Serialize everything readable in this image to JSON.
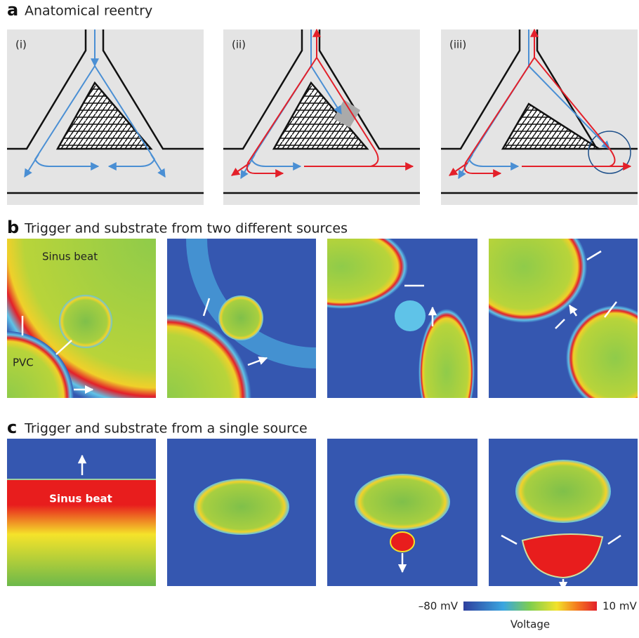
{
  "panels": [
    {
      "letter": "a",
      "title": "Anatomical reentry",
      "labels": [
        "(i)",
        "(ii)",
        "(iii)"
      ]
    },
    {
      "letter": "b",
      "title": "Trigger and substrate from two different sources",
      "annotations": [
        "Sinus beat",
        "PVC"
      ]
    },
    {
      "letter": "c",
      "title": "Trigger and substrate from a single source",
      "annotations": [
        "Sinus beat"
      ]
    }
  ],
  "colorbar": {
    "min_label": "–80 mV",
    "max_label": "10 mV",
    "title": "Voltage"
  }
}
